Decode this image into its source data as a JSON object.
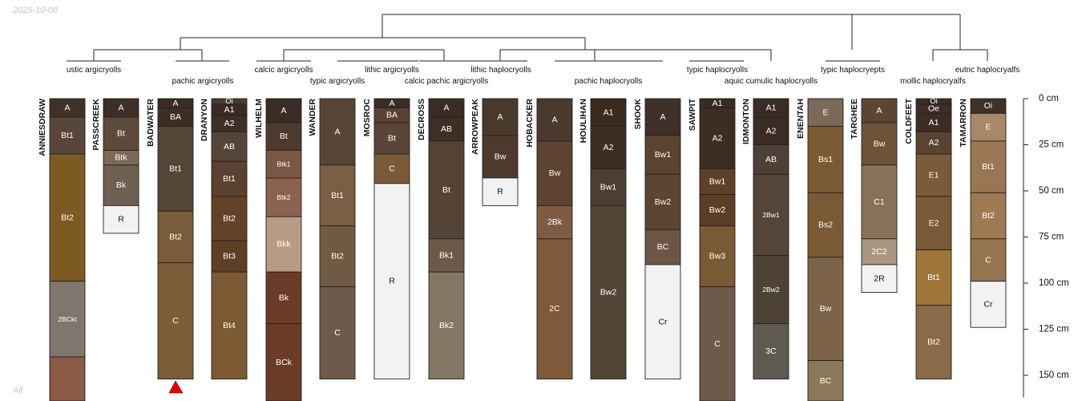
{
  "header": {
    "date": "2025-10-08",
    "footer": "All"
  },
  "depth_axis": {
    "ticks": [
      "0 cm",
      "25 cm",
      "50 cm",
      "75 cm",
      "100 cm",
      "125 cm",
      "150 cm"
    ],
    "tick_depths": [
      0,
      25,
      50,
      75,
      100,
      125,
      150
    ],
    "max_visible_depth": 162
  },
  "colors": {
    "line": "#222222",
    "warning": "#e00000",
    "text_light": "#ffffff",
    "text_dark": "#111111"
  },
  "taxa": [
    "ustic argicryolls",
    "pachic argicryolls",
    "calcic argicryolls",
    "typic argicryolls",
    "lithic argicryolls",
    "calcic pachic argicryolls",
    "lithic haplocryolls",
    "pachic haplocryolls",
    "typic haplocryolls",
    "aquic cumulic haplocryolls",
    "typic haplocryepts",
    "mollic haplocryalfs",
    "eutric haplocryalfs"
  ],
  "profiles": [
    {
      "name": "ANNIESDRAW",
      "horizons": [
        {
          "name": "A",
          "top": 0,
          "bottom": 10,
          "color": "#3f3128"
        },
        {
          "name": "Bt1",
          "top": 10,
          "bottom": 30,
          "color": "#59463a"
        },
        {
          "name": "Bt2",
          "top": 30,
          "bottom": 99,
          "color": "#7d5a24"
        },
        {
          "name": "2BCkt",
          "top": 99,
          "bottom": 140,
          "color": "#7f776d"
        },
        {
          "name": "",
          "top": 140,
          "bottom": 175,
          "color": "#8a5a45"
        }
      ]
    },
    {
      "name": "PASSCREEK",
      "horizons": [
        {
          "name": "A",
          "top": 0,
          "bottom": 10,
          "color": "#3d2f26"
        },
        {
          "name": "Bt",
          "top": 10,
          "bottom": 28,
          "color": "#5e4a3a"
        },
        {
          "name": "Btk",
          "top": 28,
          "bottom": 36,
          "color": "#7d6a55"
        },
        {
          "name": "Bk",
          "top": 36,
          "bottom": 58,
          "color": "#6e5f50"
        },
        {
          "name": "R",
          "top": 58,
          "bottom": 73,
          "color": "#f2f2f2"
        }
      ]
    },
    {
      "name": "BADWATER",
      "horizons": [
        {
          "name": "A",
          "top": 0,
          "bottom": 5,
          "color": "#3b2b22"
        },
        {
          "name": "BA",
          "top": 5,
          "bottom": 15,
          "color": "#3d2e25"
        },
        {
          "name": "Bt1",
          "top": 15,
          "bottom": 61,
          "color": "#554537"
        },
        {
          "name": "Bt2",
          "top": 61,
          "bottom": 89,
          "color": "#7a5c3a"
        },
        {
          "name": "C",
          "top": 89,
          "bottom": 152,
          "color": "#7d5d38"
        }
      ]
    },
    {
      "name": "DRANYON",
      "horizons": [
        {
          "name": "Oi",
          "top": 0,
          "bottom": 3,
          "color": "#4a3b30"
        },
        {
          "name": "A1",
          "top": 3,
          "bottom": 9,
          "color": "#3b2c23"
        },
        {
          "name": "A2",
          "top": 9,
          "bottom": 18,
          "color": "#3e2f26"
        },
        {
          "name": "AB",
          "top": 18,
          "bottom": 34,
          "color": "#554438"
        },
        {
          "name": "Bt1",
          "top": 34,
          "bottom": 53,
          "color": "#5c4030"
        },
        {
          "name": "Bt2",
          "top": 53,
          "bottom": 77,
          "color": "#634228"
        },
        {
          "name": "Bt3",
          "top": 77,
          "bottom": 94,
          "color": "#5d3f26"
        },
        {
          "name": "Bt4",
          "top": 94,
          "bottom": 152,
          "color": "#7d5a34"
        }
      ]
    },
    {
      "name": "WILHELM",
      "horizons": [
        {
          "name": "A",
          "top": 0,
          "bottom": 13,
          "color": "#3a2c24"
        },
        {
          "name": "Bt",
          "top": 13,
          "bottom": 28,
          "color": "#4e3a2c"
        },
        {
          "name": "Btk1",
          "top": 28,
          "bottom": 43,
          "color": "#7b5845"
        },
        {
          "name": "Btk2",
          "top": 43,
          "bottom": 64,
          "color": "#8a6250"
        },
        {
          "name": "Bkk",
          "top": 64,
          "bottom": 94,
          "color": "#b99a85"
        },
        {
          "name": "Bk",
          "top": 94,
          "bottom": 122,
          "color": "#6a3c28"
        },
        {
          "name": "BCk",
          "top": 122,
          "bottom": 175,
          "color": "#6a3c26"
        }
      ]
    },
    {
      "name": "WANDER",
      "horizons": [
        {
          "name": "A",
          "top": 0,
          "bottom": 36,
          "color": "#564535"
        },
        {
          "name": "Bt1",
          "top": 36,
          "bottom": 69,
          "color": "#7a5f44"
        },
        {
          "name": "Bt2",
          "top": 69,
          "bottom": 102,
          "color": "#705a44"
        },
        {
          "name": "C",
          "top": 102,
          "bottom": 152,
          "color": "#6e5a4c"
        }
      ]
    },
    {
      "name": "MOSROC",
      "horizons": [
        {
          "name": "A",
          "top": 0,
          "bottom": 5,
          "color": "#3b2c23"
        },
        {
          "name": "BA",
          "top": 5,
          "bottom": 13,
          "color": "#5b4132"
        },
        {
          "name": "Bt",
          "top": 13,
          "bottom": 30,
          "color": "#5a4536"
        },
        {
          "name": "C",
          "top": 30,
          "bottom": 46,
          "color": "#7c5a38"
        },
        {
          "name": "R",
          "top": 46,
          "bottom": 152,
          "color": "#f2f2f2"
        }
      ]
    },
    {
      "name": "DECROSS",
      "horizons": [
        {
          "name": "A",
          "top": 0,
          "bottom": 10,
          "color": "#3a2c24"
        },
        {
          "name": "AB",
          "top": 10,
          "bottom": 23,
          "color": "#3d2f26"
        },
        {
          "name": "Bt",
          "top": 23,
          "bottom": 76,
          "color": "#554436"
        },
        {
          "name": "Bk1",
          "top": 76,
          "bottom": 94,
          "color": "#6c5a48"
        },
        {
          "name": "Bk2",
          "top": 94,
          "bottom": 152,
          "color": "#857763"
        }
      ]
    },
    {
      "name": "ARROWPEAK",
      "horizons": [
        {
          "name": "A",
          "top": 0,
          "bottom": 20,
          "color": "#4a3a2c"
        },
        {
          "name": "Bw",
          "top": 20,
          "bottom": 43,
          "color": "#4e3a2c"
        },
        {
          "name": "R",
          "top": 43,
          "bottom": 58,
          "color": "#f2f2f2"
        }
      ]
    },
    {
      "name": "HOBACKER",
      "horizons": [
        {
          "name": "A",
          "top": 0,
          "bottom": 23,
          "color": "#4a3a2e"
        },
        {
          "name": "Bw",
          "top": 23,
          "bottom": 58,
          "color": "#5e4330"
        },
        {
          "name": "2Bk",
          "top": 58,
          "bottom": 76,
          "color": "#7e5c44"
        },
        {
          "name": "2C",
          "top": 76,
          "bottom": 152,
          "color": "#7e5a3a"
        }
      ]
    },
    {
      "name": "HOULIHAN",
      "horizons": [
        {
          "name": "A1",
          "top": 0,
          "bottom": 15,
          "color": "#3a2a20"
        },
        {
          "name": "A2",
          "top": 15,
          "bottom": 38,
          "color": "#3d2e23"
        },
        {
          "name": "Bw1",
          "top": 38,
          "bottom": 58,
          "color": "#4d3e31"
        },
        {
          "name": "Bw2",
          "top": 58,
          "bottom": 152,
          "color": "#544435"
        }
      ]
    },
    {
      "name": "SHOOK",
      "horizons": [
        {
          "name": "A",
          "top": 0,
          "bottom": 20,
          "color": "#3e3029"
        },
        {
          "name": "Bw1",
          "top": 20,
          "bottom": 41,
          "color": "#5b432f"
        },
        {
          "name": "Bw2",
          "top": 41,
          "bottom": 71,
          "color": "#5d4532"
        },
        {
          "name": "BC",
          "top": 71,
          "bottom": 90,
          "color": "#6d5645"
        },
        {
          "name": "Cr",
          "top": 90,
          "bottom": 152,
          "color": "#f2f2f2"
        }
      ]
    },
    {
      "name": "SAWPIT",
      "horizons": [
        {
          "name": "A1",
          "top": 0,
          "bottom": 5,
          "color": "#3a2a20"
        },
        {
          "name": "A2",
          "top": 5,
          "bottom": 38,
          "color": "#3d2e24"
        },
        {
          "name": "Bw1",
          "top": 38,
          "bottom": 52,
          "color": "#5e4129"
        },
        {
          "name": "Bw2",
          "top": 52,
          "bottom": 69,
          "color": "#5b3d28"
        },
        {
          "name": "Bw3",
          "top": 69,
          "bottom": 102,
          "color": "#7a5a34"
        },
        {
          "name": "C",
          "top": 102,
          "bottom": 175,
          "color": "#6e5a4a"
        }
      ]
    },
    {
      "name": "IDMONTON",
      "horizons": [
        {
          "name": "A1",
          "top": 0,
          "bottom": 10,
          "color": "#3a2c24"
        },
        {
          "name": "A2",
          "top": 10,
          "bottom": 25,
          "color": "#3a2c24"
        },
        {
          "name": "AB",
          "top": 25,
          "bottom": 41,
          "color": "#4e4036"
        },
        {
          "name": "2Bw1",
          "top": 41,
          "bottom": 85,
          "color": "#554538"
        },
        {
          "name": "2Bw2",
          "top": 85,
          "bottom": 122,
          "color": "#4e4237"
        },
        {
          "name": "3C",
          "top": 122,
          "bottom": 152,
          "color": "#5e5a50"
        }
      ]
    },
    {
      "name": "ENENTAH",
      "horizons": [
        {
          "name": "E",
          "top": 0,
          "bottom": 15,
          "color": "#7a6a58"
        },
        {
          "name": "Bs1",
          "top": 15,
          "bottom": 51,
          "color": "#7a5a34"
        },
        {
          "name": "Bs2",
          "top": 51,
          "bottom": 86,
          "color": "#7a5a34"
        },
        {
          "name": "Bw",
          "top": 86,
          "bottom": 142,
          "color": "#7d6448"
        },
        {
          "name": "BC",
          "top": 142,
          "bottom": 175,
          "color": "#8a7858"
        }
      ]
    },
    {
      "name": "TARGHEE",
      "horizons": [
        {
          "name": "A",
          "top": 0,
          "bottom": 13,
          "color": "#5c4633"
        },
        {
          "name": "Bw",
          "top": 13,
          "bottom": 36,
          "color": "#6e5338"
        },
        {
          "name": "C1",
          "top": 36,
          "bottom": 76,
          "color": "#8a7258"
        },
        {
          "name": "2C2",
          "top": 76,
          "bottom": 90,
          "color": "#a99580"
        },
        {
          "name": "2R",
          "top": 90,
          "bottom": 105,
          "color": "#f2f2f2"
        }
      ]
    },
    {
      "name": "COLDFEET",
      "horizons": [
        {
          "name": "Oi",
          "top": 0,
          "bottom": 3,
          "color": "#3a2c24"
        },
        {
          "name": "Oe",
          "top": 3,
          "bottom": 8,
          "color": "#3d2e26"
        },
        {
          "name": "A1",
          "top": 8,
          "bottom": 18,
          "color": "#3d2e25"
        },
        {
          "name": "A2",
          "top": 18,
          "bottom": 30,
          "color": "#5b4332"
        },
        {
          "name": "E1",
          "top": 30,
          "bottom": 53,
          "color": "#7a5a38"
        },
        {
          "name": "E2",
          "top": 53,
          "bottom": 82,
          "color": "#7a5a36"
        },
        {
          "name": "Bt1",
          "top": 82,
          "bottom": 112,
          "color": "#a0753a"
        },
        {
          "name": "Bt2",
          "top": 112,
          "bottom": 152,
          "color": "#8a6a48"
        }
      ]
    },
    {
      "name": "TAMARRON",
      "horizons": [
        {
          "name": "Oi",
          "top": 0,
          "bottom": 8,
          "color": "#3f3128"
        },
        {
          "name": "E",
          "top": 8,
          "bottom": 23,
          "color": "#a88868"
        },
        {
          "name": "Bt1",
          "top": 23,
          "bottom": 51,
          "color": "#9b7655"
        },
        {
          "name": "Bt2",
          "top": 51,
          "bottom": 76,
          "color": "#9e7a52"
        },
        {
          "name": "C",
          "top": 76,
          "bottom": 99,
          "color": "#94754f"
        },
        {
          "name": "Cr",
          "top": 99,
          "bottom": 124,
          "color": "#f2f2f2"
        }
      ]
    }
  ]
}
